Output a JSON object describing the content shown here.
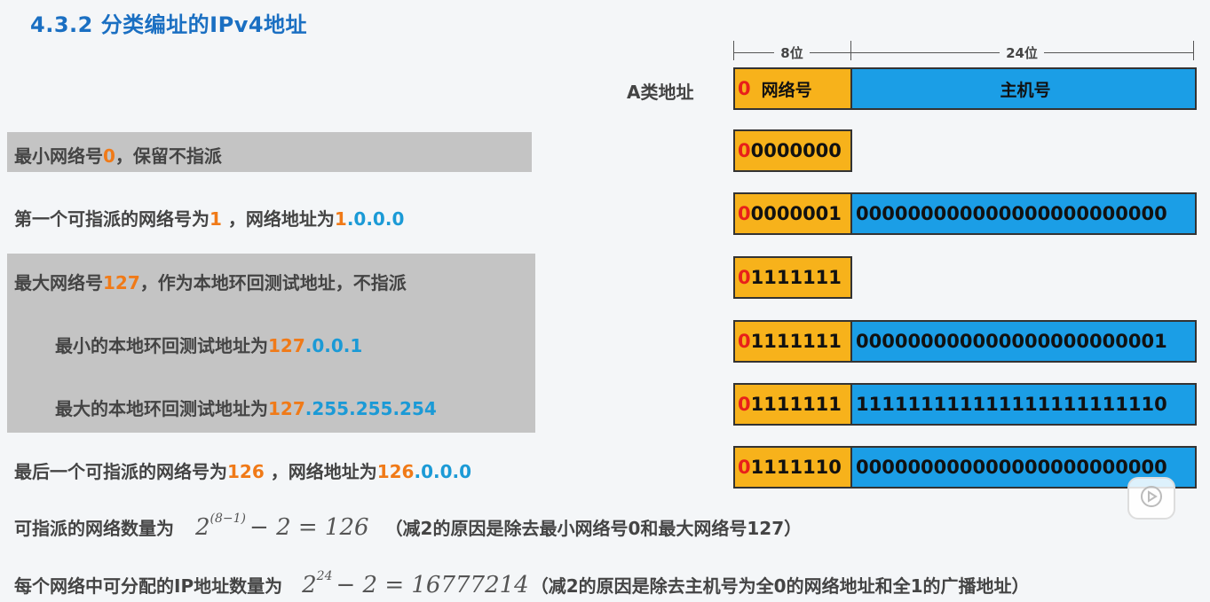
{
  "title": "4.3.2 分类编址的IPv4地址",
  "diagram": {
    "class_label": "A类地址",
    "header_net_bits": "8位",
    "header_host_bits": "24位",
    "header_lead_bit": "0",
    "header_net_label": "网络号",
    "header_host_label": "主机号"
  },
  "rows": [
    {
      "net_lead": "0",
      "net_rest": "0000000",
      "host": ""
    },
    {
      "net_lead": "0",
      "net_rest": "0000001",
      "host": "000000000000000000000000"
    },
    {
      "net_lead": "0",
      "net_rest": "1111111",
      "host": ""
    },
    {
      "net_lead": "0",
      "net_rest": "1111111",
      "host": "000000000000000000000001"
    },
    {
      "net_lead": "0",
      "net_rest": "1111111",
      "host": "111111111111111111111110"
    },
    {
      "net_lead": "0",
      "net_rest": "1111110",
      "host": "000000000000000000000000"
    }
  ],
  "lines": {
    "l1": {
      "a": "最小网络号",
      "b": "0",
      "c": "，保留不指派"
    },
    "l2": {
      "a": "第一个可指派的网络号为",
      "b": "1",
      "c": " ，网络地址为",
      "d": "1",
      "e": ".0.0.0"
    },
    "l3": {
      "a": "最大网络号",
      "b": "127",
      "c": "，作为本地环回测试地址，不指派"
    },
    "l4": {
      "a": "最小的本地环回测试地址为",
      "b": "127",
      "c": ".0.0.1"
    },
    "l5": {
      "a": "最大的本地环回测试地址为",
      "b": "127",
      "c": ".255.255.254"
    },
    "l6": {
      "a": "最后一个可指派的网络号为",
      "b": "126",
      "c": " ，网络地址为",
      "d": "126",
      "e": ".0.0.0"
    }
  },
  "formula1": {
    "label": "可指派的网络数量为",
    "base": "2",
    "exp": "(8−1)",
    "rest": "− 2 = 126",
    "note": "（减2的原因是除去最小网络号0和最大网络号127）"
  },
  "formula2": {
    "label": "每个网络中可分配的IP地址数量为",
    "base": "2",
    "exp": "24",
    "rest": "− 2 = 16777214",
    "note": "（减2的原因是除去主机号为全0的网络地址和全1的广播地址）"
  },
  "icons": {
    "play": "play-icon"
  }
}
